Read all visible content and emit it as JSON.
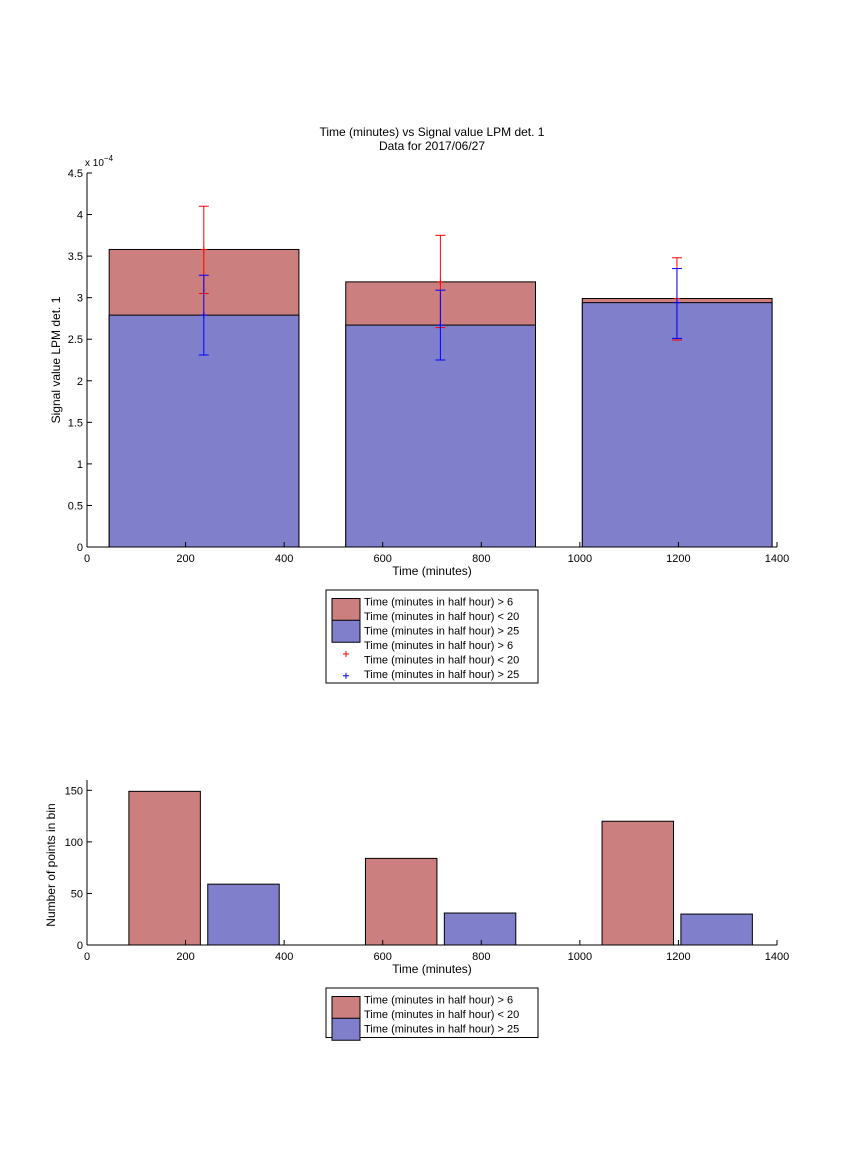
{
  "colors": {
    "red_bar": "#cc7f7f",
    "blue_bar": "#7f7fcc",
    "red_err": "#ff0000",
    "blue_err": "#0000ff",
    "edge": "#000000"
  },
  "chart_data": [
    {
      "type": "bar",
      "title": "Time (minutes) vs Signal value LPM det. 1",
      "subtitle": "Data for 2017/06/27",
      "xlabel": "Time (minutes)",
      "ylabel": "Signal value LPM det. 1",
      "exponent_label": "x 10",
      "exponent_power": "−4",
      "xlim": [
        0,
        1400
      ],
      "ylim": [
        0,
        4.5
      ],
      "xticks": [
        0,
        200,
        400,
        600,
        800,
        1000,
        1200,
        1400
      ],
      "yticks": [
        0,
        0.5,
        1,
        1.5,
        2,
        2.5,
        3,
        3.5,
        4,
        4.5
      ],
      "ytick_labels": [
        "0",
        "0.5",
        "1",
        "1.5",
        "2",
        "2.5",
        "3",
        "3.5",
        "4",
        "4.5"
      ],
      "bar_ranges": [
        [
          45,
          430
        ],
        [
          525,
          910
        ],
        [
          1005,
          1390
        ]
      ],
      "series": [
        {
          "name": "Time (minutes in half hour) > 6 Time (minutes in half hour) < 20",
          "color_key": "red_bar",
          "values": [
            3.58,
            3.19,
            2.99
          ]
        },
        {
          "name": "Time (minutes in half hour) > 25",
          "color_key": "blue_bar",
          "values": [
            2.79,
            2.67,
            2.94
          ]
        }
      ],
      "errorbars": [
        {
          "name": "Time (minutes in half hour) > 6 Time (minutes in half hour) < 20",
          "color_key": "red_err",
          "x": [
            237,
            717,
            1197
          ],
          "y": [
            3.58,
            3.19,
            2.99
          ],
          "lower": [
            3.05,
            2.64,
            2.49
          ],
          "upper": [
            4.1,
            3.75,
            3.48
          ]
        },
        {
          "name": "Time (minutes in half hour) > 25",
          "color_key": "blue_err",
          "x": [
            237,
            717,
            1197
          ],
          "y": [
            2.79,
            2.67,
            2.94
          ],
          "lower": [
            2.31,
            2.25,
            2.51
          ],
          "upper": [
            3.27,
            3.09,
            3.35
          ]
        }
      ],
      "legend": {
        "placement": "below",
        "entries": [
          {
            "marker": "bar",
            "color_key": "red_bar",
            "lines": [
              "Time (minutes in half hour) > 6",
              "Time (minutes in half hour) < 20"
            ]
          },
          {
            "marker": "bar",
            "color_key": "blue_bar",
            "lines": [
              "Time (minutes in half hour) > 25"
            ]
          },
          {
            "marker": "plus",
            "color_key": "red_err",
            "lines": [
              "Time (minutes in half hour) > 6",
              "Time (minutes in half hour) < 20"
            ]
          },
          {
            "marker": "plus",
            "color_key": "blue_err",
            "lines": [
              "Time (minutes in half hour) > 25"
            ]
          }
        ]
      }
    },
    {
      "type": "bar",
      "title": "",
      "xlabel": "Time (minutes)",
      "ylabel": "Number of points in bin",
      "xlim": [
        0,
        1400
      ],
      "ylim": [
        0,
        160
      ],
      "xticks": [
        0,
        200,
        400,
        600,
        800,
        1000,
        1200,
        1400
      ],
      "yticks": [
        0,
        50,
        100,
        150
      ],
      "ytick_labels": [
        "0",
        "50",
        "100",
        "150"
      ],
      "series": [
        {
          "name": "Time (minutes in half hour) > 6 Time (minutes in half hour) < 20",
          "color_key": "red_bar",
          "x_ranges": [
            [
              85,
              230
            ],
            [
              565,
              710
            ],
            [
              1045,
              1190
            ]
          ],
          "values": [
            149,
            84,
            120
          ]
        },
        {
          "name": "Time (minutes in half hour) > 25",
          "color_key": "blue_bar",
          "x_ranges": [
            [
              245,
              390
            ],
            [
              725,
              870
            ],
            [
              1205,
              1350
            ]
          ],
          "values": [
            59,
            31,
            30
          ]
        }
      ],
      "legend": {
        "placement": "below",
        "entries": [
          {
            "marker": "bar",
            "color_key": "red_bar",
            "lines": [
              "Time (minutes in half hour) > 6",
              "Time (minutes in half hour) < 20"
            ]
          },
          {
            "marker": "bar",
            "color_key": "blue_bar",
            "lines": [
              "Time (minutes in half hour) > 25"
            ]
          }
        ]
      }
    }
  ]
}
